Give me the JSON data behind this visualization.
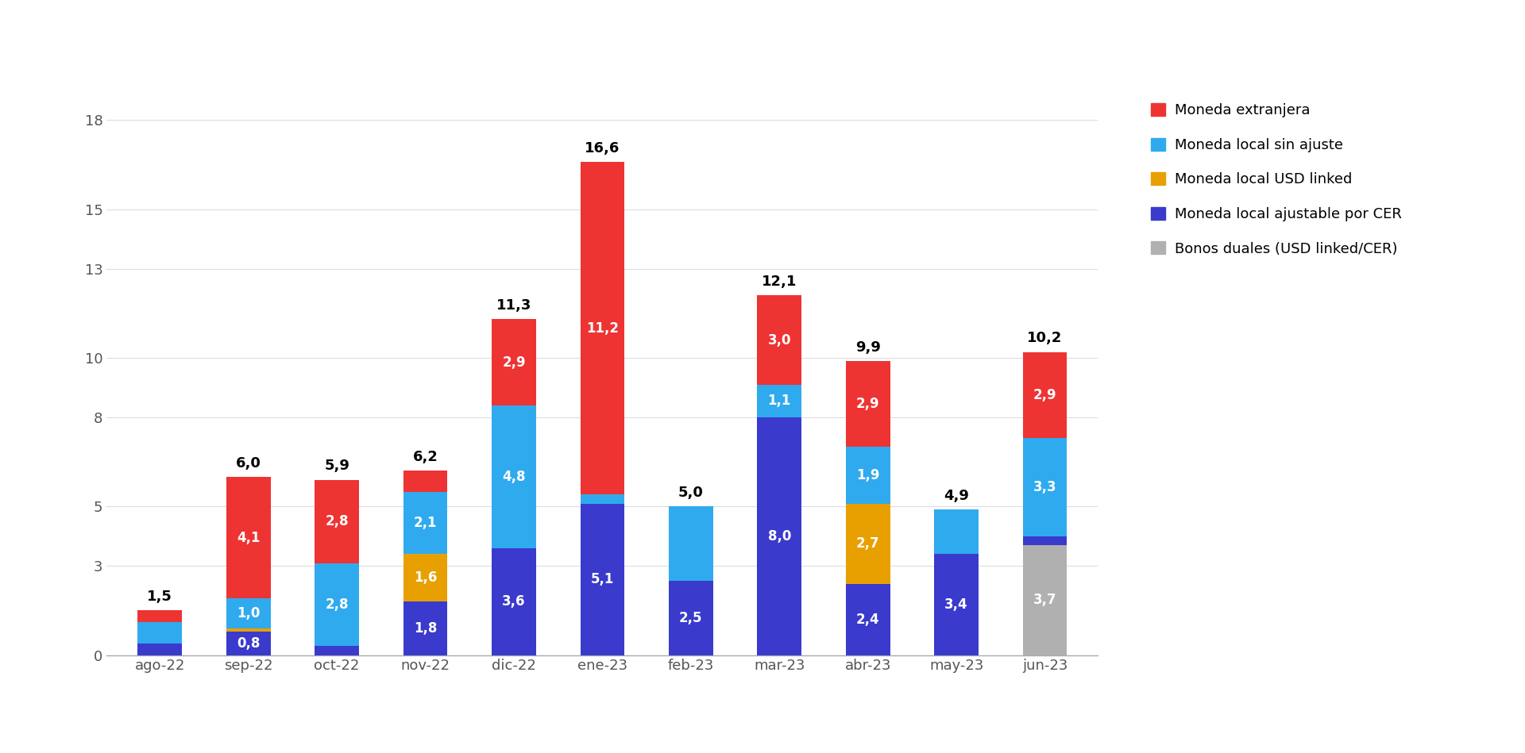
{
  "categories": [
    "ago-22",
    "sep-22",
    "oct-22",
    "nov-22",
    "dic-22",
    "ene-23",
    "feb-23",
    "mar-23",
    "abr-23",
    "may-23",
    "jun-23"
  ],
  "series": {
    "bonos_duales": [
      0.0,
      0.0,
      0.0,
      0.0,
      0.0,
      0.0,
      0.0,
      0.0,
      0.0,
      0.0,
      3.7
    ],
    "cer": [
      0.4,
      0.8,
      0.3,
      1.8,
      3.6,
      5.1,
      2.5,
      8.0,
      2.4,
      3.4,
      0.3
    ],
    "usd_linked": [
      0.0,
      0.1,
      0.0,
      1.6,
      0.0,
      0.0,
      0.0,
      0.0,
      2.7,
      0.0,
      0.0
    ],
    "local_sin_ajuste": [
      0.7,
      1.0,
      2.8,
      2.1,
      4.8,
      0.3,
      2.5,
      1.1,
      1.9,
      1.5,
      3.3
    ],
    "extranjera": [
      0.4,
      4.1,
      2.8,
      0.7,
      2.9,
      11.2,
      0.0,
      3.0,
      2.9,
      0.0,
      2.9
    ]
  },
  "labels_in_bars": {
    "bonos_duales": [
      null,
      null,
      null,
      null,
      null,
      null,
      null,
      null,
      null,
      null,
      "3,7"
    ],
    "cer": [
      null,
      "0,8",
      null,
      "1,8",
      "3,6",
      "5,1",
      "2,5",
      "8,0",
      "2,4",
      "3,4",
      null
    ],
    "usd_linked": [
      null,
      null,
      null,
      "1,6",
      null,
      null,
      null,
      null,
      "2,7",
      null,
      null
    ],
    "local_sin_ajuste": [
      null,
      "1,0",
      "2,8",
      "2,1",
      "4,8",
      null,
      null,
      "1,1",
      "1,9",
      null,
      "3,3"
    ],
    "extranjera": [
      null,
      "4,1",
      "2,8",
      null,
      "2,9",
      "11,2",
      null,
      "3,0",
      "2,9",
      null,
      "2,9"
    ]
  },
  "total_vals": [
    1.5,
    6.0,
    5.9,
    6.2,
    11.3,
    16.6,
    5.0,
    12.1,
    9.9,
    4.9,
    10.2
  ],
  "totals_text": [
    "1,5",
    "6,0",
    "5,9",
    "6,2",
    "11,3",
    "16,6",
    "5,0",
    "12,1",
    "9,9",
    "4,9",
    "10,2"
  ],
  "colors": {
    "bonos_duales": "#b0b0b0",
    "cer": "#3a3acc",
    "usd_linked": "#e8a000",
    "local_sin_ajuste": "#30aaee",
    "extranjera": "#ee3333"
  },
  "legend_keys": [
    "extranjera",
    "local_sin_ajuste",
    "usd_linked",
    "cer",
    "bonos_duales"
  ],
  "legend_labels": [
    "Moneda extranjera",
    "Moneda local sin ajuste",
    "Moneda local USD linked",
    "Moneda local ajustable por CER",
    "Bonos duales (USD linked/CER)"
  ],
  "ylim": [
    0,
    19
  ],
  "yticks": [
    0,
    3,
    5,
    8,
    10,
    13,
    15,
    18
  ],
  "background_color": "#ffffff",
  "bar_width": 0.5
}
